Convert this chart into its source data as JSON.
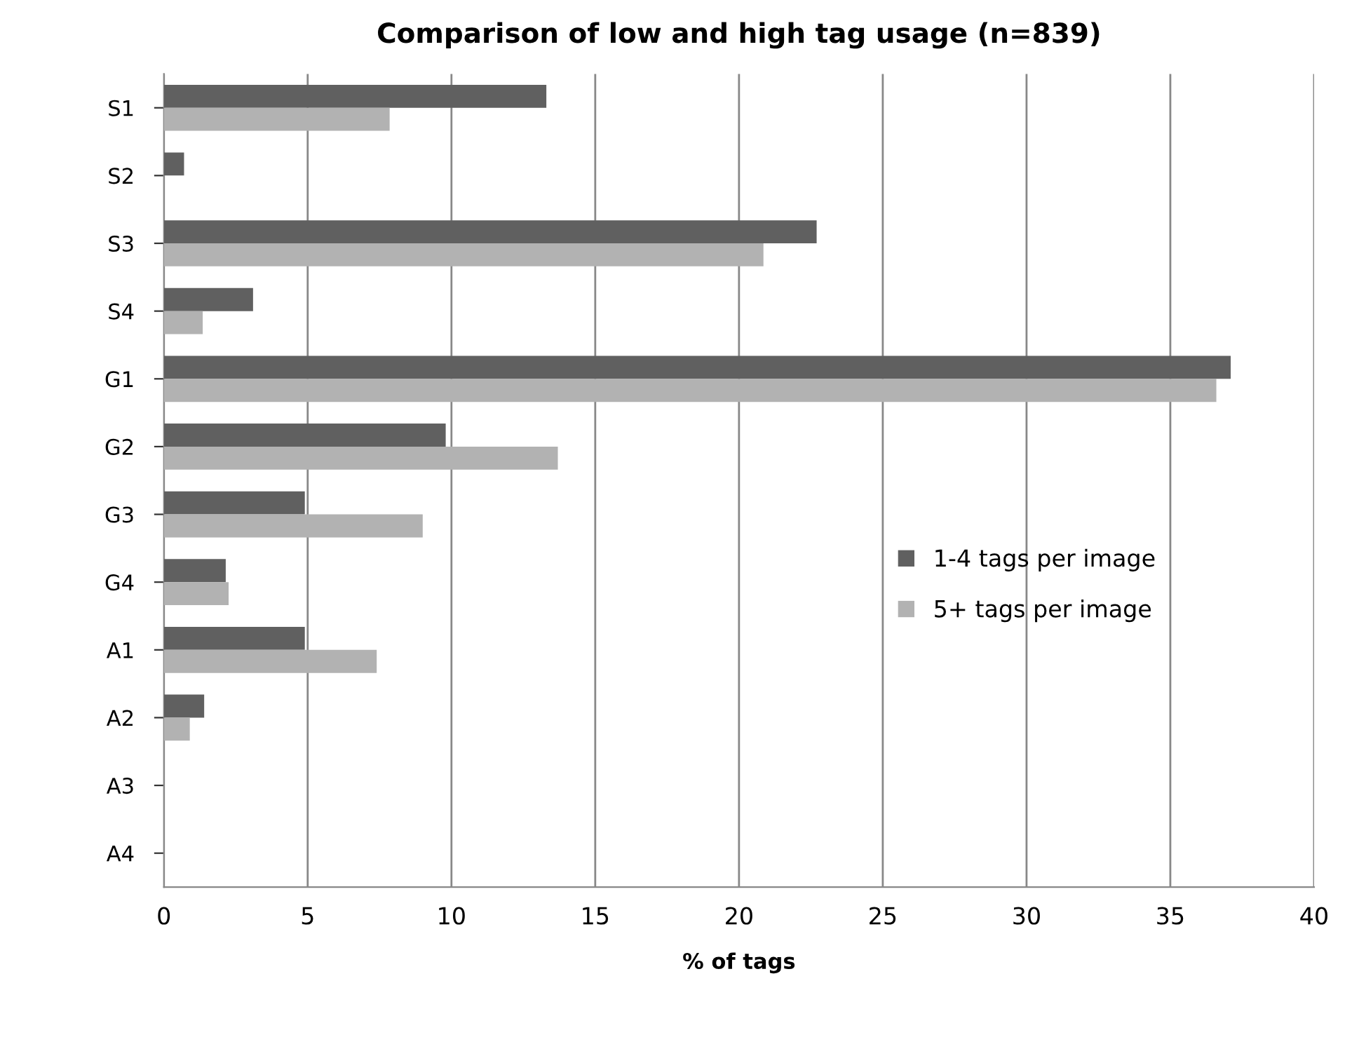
{
  "chart_data": {
    "type": "bar",
    "orientation": "horizontal",
    "title": "Comparison of low and high tag usage (n=839)",
    "xlabel": "% of tags",
    "categories": [
      "S1",
      "S2",
      "S3",
      "S4",
      "G1",
      "G2",
      "G3",
      "G4",
      "A1",
      "A2",
      "A3",
      "A4"
    ],
    "series": [
      {
        "name": "1-4 tags per image",
        "color": "#606060",
        "values": [
          13.3,
          0.7,
          22.7,
          3.1,
          37.1,
          9.8,
          4.9,
          2.15,
          4.9,
          1.4,
          0,
          0
        ]
      },
      {
        "name": "5+ tags per image",
        "color": "#b2b2b2",
        "values": [
          7.85,
          0,
          20.85,
          1.35,
          36.6,
          13.7,
          9.0,
          2.25,
          7.4,
          0.9,
          0,
          0
        ]
      }
    ],
    "xlim": [
      0,
      40
    ],
    "xticks": [
      0,
      5,
      10,
      15,
      20,
      25,
      30,
      35,
      40
    ],
    "grid": "x",
    "legend": "right"
  }
}
